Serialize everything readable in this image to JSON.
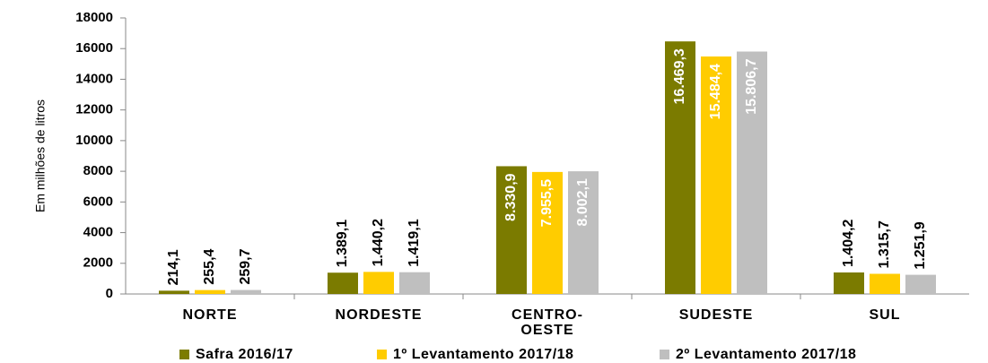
{
  "chart_data": {
    "type": "bar",
    "y_label": "Em milhões de litros",
    "categories": [
      "NORTE",
      "NORDESTE",
      "CENTRO-\nOESTE",
      "SUDESTE",
      "SUL"
    ],
    "series": [
      {
        "name": "Safra 2016/17",
        "color": "#7b7b00",
        "values": [
          214.1,
          1389.1,
          8330.9,
          16469.3,
          1404.2
        ],
        "value_labels": [
          "214,1",
          "1.389,1",
          "8.330,9",
          "16.469,3",
          "1.404,2"
        ]
      },
      {
        "name": "1º Levantamento 2017/18",
        "color": "#ffcc00",
        "values": [
          255.4,
          1440.2,
          7955.5,
          15484.4,
          1315.7
        ],
        "value_labels": [
          "255,4",
          "1.440,2",
          "7.955,5",
          "15.484,4",
          "1.315,7"
        ]
      },
      {
        "name": "2º Levantamento 2017/18",
        "color": "#bfbfbf",
        "values": [
          259.7,
          1419.1,
          8002.1,
          15806.7,
          1251.9
        ],
        "value_labels": [
          "259,7",
          "1.419,1",
          "8.002,1",
          "15.806,7",
          "1.251,9"
        ]
      }
    ],
    "ylim": [
      0,
      18000
    ],
    "yticks": [
      0,
      2000,
      4000,
      6000,
      8000,
      10000,
      12000,
      14000,
      16000,
      18000
    ]
  }
}
